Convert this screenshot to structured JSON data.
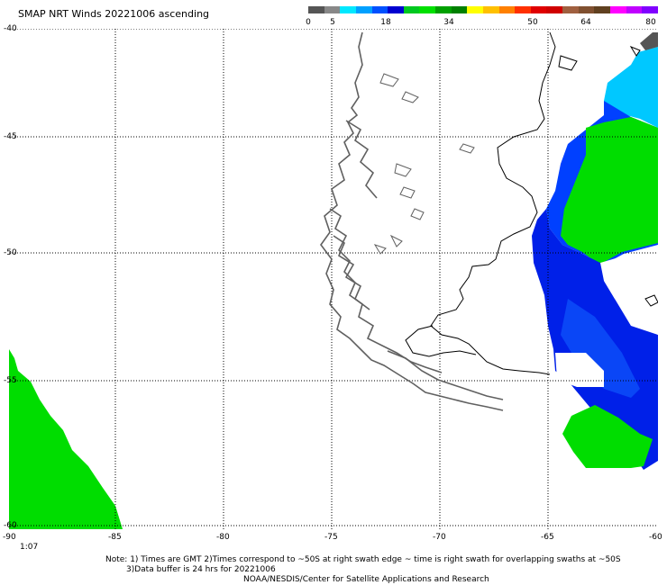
{
  "title": "SMAP NRT Winds 20221006 ascending",
  "colorbar": {
    "labels": [
      "0",
      "5",
      "18",
      "34",
      "50",
      "64",
      "80"
    ],
    "segments": [
      {
        "color": "#555555",
        "w": 1
      },
      {
        "color": "#888888",
        "w": 1
      },
      {
        "color": "#00e8ff",
        "w": 1
      },
      {
        "color": "#00a0ff",
        "w": 1
      },
      {
        "color": "#0050ff",
        "w": 1
      },
      {
        "color": "#0000d0",
        "w": 1
      },
      {
        "color": "#00c820",
        "w": 1
      },
      {
        "color": "#00e000",
        "w": 1
      },
      {
        "color": "#00a000",
        "w": 1
      },
      {
        "color": "#008000",
        "w": 1
      },
      {
        "color": "#ffff00",
        "w": 1
      },
      {
        "color": "#ffc000",
        "w": 1
      },
      {
        "color": "#ff8000",
        "w": 1
      },
      {
        "color": "#ff3000",
        "w": 1
      },
      {
        "color": "#e00000",
        "w": 1
      },
      {
        "color": "#d00000",
        "w": 1
      },
      {
        "color": "#a06040",
        "w": 1
      },
      {
        "color": "#805030",
        "w": 1
      },
      {
        "color": "#604020",
        "w": 1
      },
      {
        "color": "#ff00ff",
        "w": 1
      },
      {
        "color": "#c000ff",
        "w": 1
      },
      {
        "color": "#8000ff",
        "w": 1
      }
    ]
  },
  "axes": {
    "lat_labels": [
      "-40",
      "-45",
      "-50",
      "-55",
      "-60"
    ],
    "lon_labels": [
      "-90",
      "-85",
      "-80",
      "-75",
      "-70",
      "-65",
      "-60"
    ]
  },
  "time_label": "1:07",
  "notes": {
    "line1": "Note: 1) Times are GMT  2)Times correspond to ~50S at right swath edge ~ time is right swath for overlapping swaths at ~50S",
    "line2": "3)Data buffer is 24 hrs for 20221006",
    "line3": "NOAA/NESDIS/Center for Satellite Applications and Research"
  },
  "colors": {
    "green": "#00dd00",
    "blue_dark": "#0018e0",
    "blue_mid": "#0040ff",
    "cyan": "#00c8ff",
    "coast": "#606060",
    "gray": "#555555"
  }
}
